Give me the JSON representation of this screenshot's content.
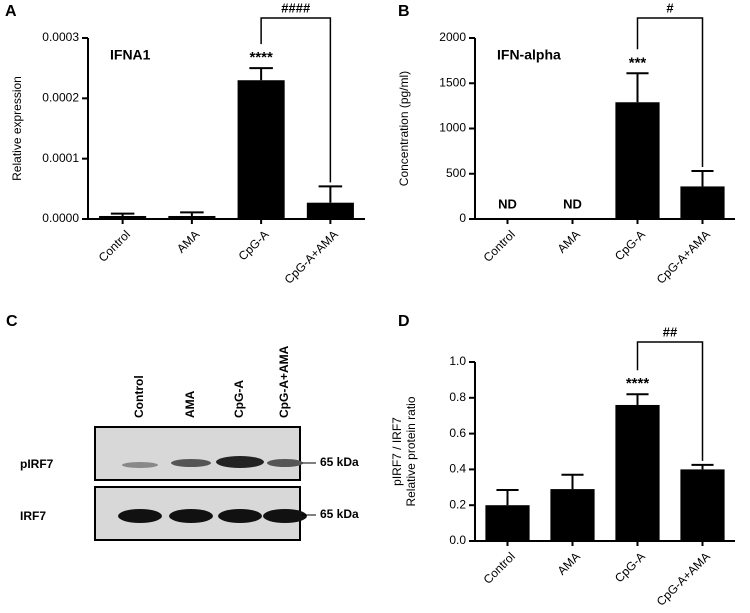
{
  "chart_data": [
    {
      "type": "bar",
      "panel_label": "A",
      "inner_title": "IFNA1",
      "ylabel": [
        "Relative expression"
      ],
      "categories": [
        "Control",
        "AMA",
        "CpG-A",
        "CpG-A+AMA"
      ],
      "values": [
        5e-06,
        5e-06,
        0.00023,
        2.7e-05
      ],
      "errors": [
        4e-06,
        6e-06,
        2e-05,
        2.7e-05
      ],
      "star_labels": [
        null,
        null,
        "****",
        null
      ],
      "bracket_label": "####",
      "color": "#000000",
      "ylim": [
        0,
        0.0003
      ],
      "yticks": [
        {
          "value": 0,
          "label": "0.0000"
        },
        0.0001,
        0.0002,
        0.0003
      ]
    },
    {
      "type": "bar",
      "panel_label": "B",
      "inner_title": "IFN-alpha",
      "ylabel": [
        "Concentration (pg/ml)"
      ],
      "categories": [
        "Control",
        "AMA",
        "CpG-A",
        "CpG-A+AMA"
      ],
      "values": [
        null,
        null,
        1290,
        360
      ],
      "value_labels": [
        "ND",
        "ND",
        null,
        null
      ],
      "errors": [
        null,
        null,
        320,
        170
      ],
      "star_labels": [
        null,
        null,
        "***",
        null
      ],
      "bracket_label": "#",
      "color": "#000000",
      "ylim": [
        0,
        2000
      ],
      "yticks": [
        0,
        500,
        1000,
        1500,
        2000
      ]
    },
    {
      "type": "bar",
      "panel_label": "D",
      "ylabel": [
        "pIRF7 / IRF7",
        "Relative protein ratio"
      ],
      "categories": [
        "Control",
        "AMA",
        "CpG-A",
        "CpG-A+AMA"
      ],
      "values": [
        0.2,
        0.29,
        0.76,
        0.4
      ],
      "errors": [
        0.085,
        0.08,
        0.06,
        0.025
      ],
      "star_labels": [
        null,
        null,
        "****",
        null
      ],
      "bracket_label": "##",
      "color": "#000000",
      "ylim": [
        0,
        1
      ],
      "yticks": [
        {
          "value": 0,
          "label": "0.0"
        },
        0.2,
        0.4,
        0.6,
        0.8,
        {
          "value": 1,
          "label": "1.0"
        }
      ]
    }
  ],
  "blot": {
    "panel_label": "C",
    "lanes": [
      "Control",
      "AMA",
      "CpG-A",
      "CpG-A+AMA"
    ],
    "rows": [
      {
        "label": "pIRF7",
        "marker": "65 kDa"
      },
      {
        "label": "IRF7",
        "marker": "65 kDa"
      }
    ]
  }
}
